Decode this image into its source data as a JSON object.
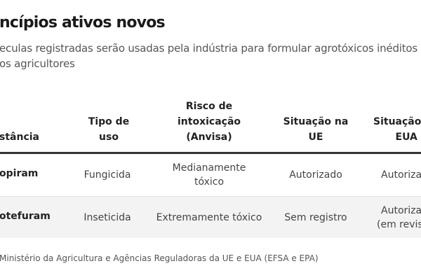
{
  "title": "ncípios ativos novos",
  "subtitle": [
    "eculas registradas serão usadas pela indústria para formular agrotóxicos inéditos",
    "os agricultores"
  ],
  "table": {
    "headers": [
      [
        "stância"
      ],
      [
        "Tipo de",
        "uso"
      ],
      [
        "Risco de",
        "intoxicação",
        "(Anvisa)"
      ],
      [
        "Situação na",
        "UE"
      ],
      [
        "Situação",
        "EUA"
      ]
    ],
    "rows": [
      {
        "name": "opiram",
        "tipo": "Fungicida",
        "risco": [
          "Medianamente",
          "tóxico"
        ],
        "ue": "Autorizado",
        "eua": [
          "Autoriza"
        ]
      },
      {
        "name": "otefuram",
        "tipo": "Inseticida",
        "risco": [
          "Extremamente tóxico"
        ],
        "ue": "Sem registro",
        "eua": [
          "Autoriza",
          "(em revis"
        ]
      }
    ]
  },
  "source": "Ministério da Agricultura e Agências Reguladoras da UE e EUA (EFSA e EPA)"
}
